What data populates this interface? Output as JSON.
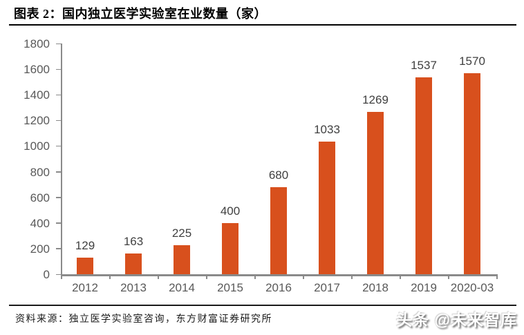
{
  "header": {
    "title": "图表 2：国内独立医学实验室在业数量（家）"
  },
  "chart_data": {
    "type": "bar",
    "title": "图表 2：国内独立医学实验室在业数量（家）",
    "categories": [
      "2012",
      "2013",
      "2014",
      "2015",
      "2016",
      "2017",
      "2018",
      "2019",
      "2020-03"
    ],
    "values": [
      129,
      163,
      225,
      400,
      680,
      1033,
      1269,
      1537,
      1570
    ],
    "xlabel": "",
    "ylabel": "",
    "ylim": [
      0,
      1800
    ],
    "yticks": [
      0,
      200,
      400,
      600,
      800,
      1000,
      1200,
      1400,
      1600,
      1800
    ],
    "grid": false,
    "legend": false,
    "data_labels": true
  },
  "footer": {
    "source": "资料来源：独立医学实验室咨询，东方财富证券研究所",
    "watermark": "头条 @未来智库"
  },
  "colors": {
    "bar": "#D8501D",
    "axis": "#8a8a8a",
    "axis_label": "#595959",
    "data_label": "#404040",
    "title": "#000000",
    "rule": "#000000"
  }
}
